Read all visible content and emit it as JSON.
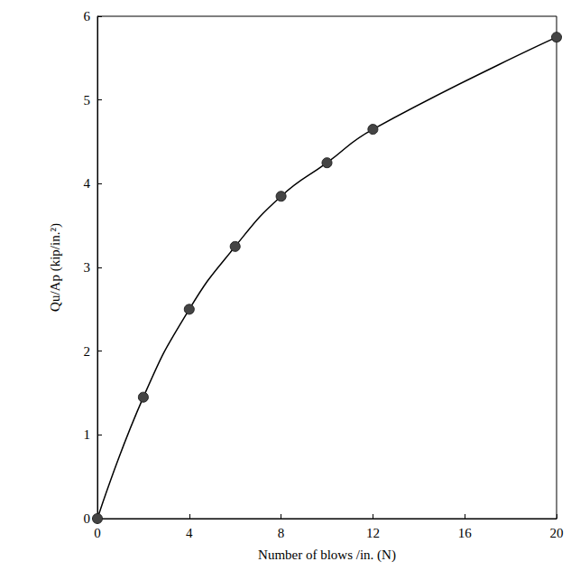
{
  "chart_data": {
    "type": "line",
    "x_label": "Number of blows /in. (N)",
    "y_label": "Qu/Ap (kip/in.²)",
    "x": [
      0,
      2,
      4,
      6,
      8,
      10,
      12,
      20
    ],
    "values": [
      0,
      1.45,
      2.5,
      3.25,
      3.85,
      4.25,
      4.65,
      5.75
    ],
    "color": "#000000",
    "marker": "circle",
    "line_style": "solid",
    "xlim": [
      0,
      20
    ],
    "xticks": [
      0,
      4,
      8,
      12,
      16,
      20
    ],
    "ylim": [
      0,
      6
    ],
    "yticks": [
      0,
      1,
      2,
      3,
      4,
      5,
      6
    ],
    "grid": false
  }
}
